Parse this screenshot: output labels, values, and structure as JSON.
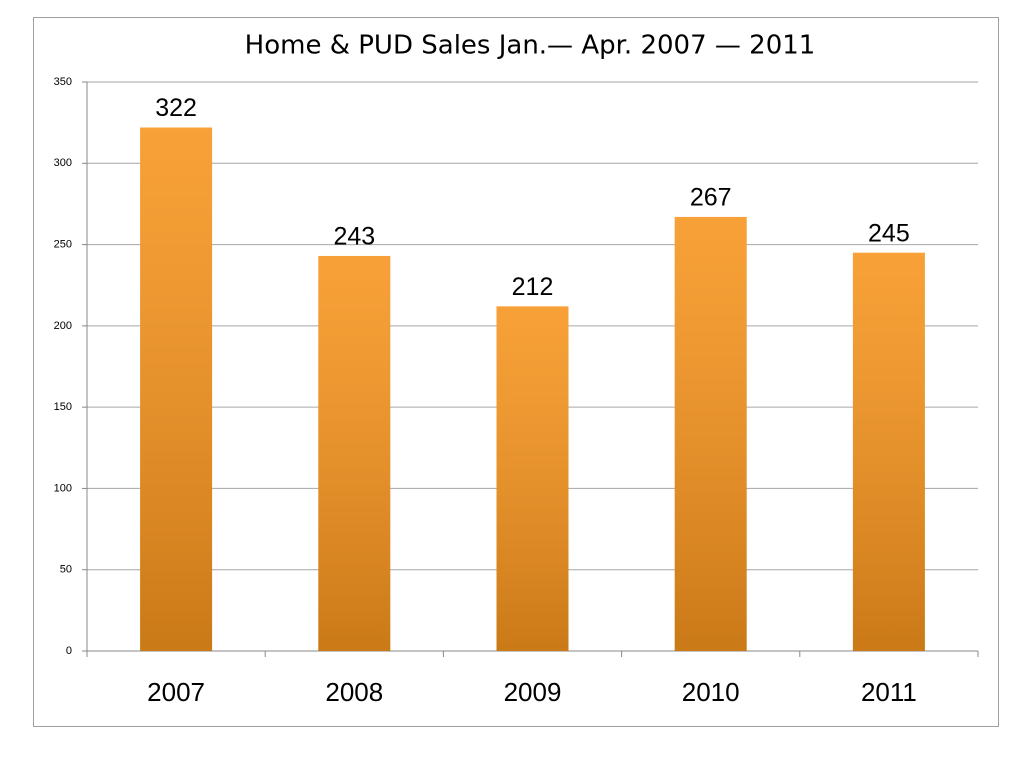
{
  "chart_data": {
    "type": "bar",
    "title": "Home & PUD Sales Jan.— Apr. 2007 — 2011",
    "categories": [
      "2007",
      "2008",
      "2009",
      "2010",
      "2011"
    ],
    "values": [
      322,
      243,
      212,
      267,
      245
    ],
    "color": "#f7941d",
    "ylim": [
      0,
      350
    ],
    "yticks": [
      0,
      50,
      100,
      150,
      200,
      250,
      300,
      350
    ],
    "grid": true
  }
}
